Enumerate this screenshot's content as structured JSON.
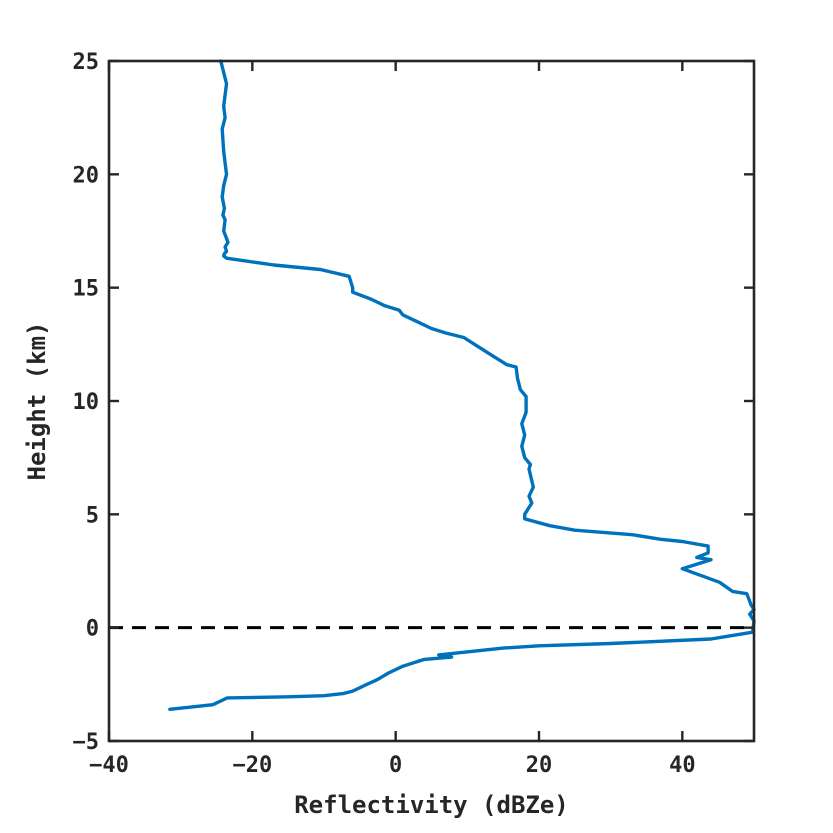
{
  "chart_data": {
    "type": "line",
    "title": "",
    "xlabel": "Reflectivity (dBZe)",
    "ylabel": "Height (km)",
    "xlim": [
      -40,
      50
    ],
    "ylim": [
      -5,
      25
    ],
    "xticks": [
      -40,
      -20,
      0,
      20,
      40
    ],
    "yticks": [
      -5,
      0,
      5,
      10,
      15,
      20,
      25
    ],
    "xtick_labels": [
      "−40",
      "−20",
      "0",
      "20",
      "40"
    ],
    "ytick_labels": [
      "−5",
      "0",
      "5",
      "10",
      "15",
      "20",
      "25"
    ],
    "grid": false,
    "box": true,
    "line_color": "#0072BD",
    "reference_line": {
      "y": 0,
      "style": "dashed",
      "color": "#000000"
    },
    "series": [
      {
        "x": [
          -24.4,
          -23.6,
          -24.0,
          -23.8,
          -24.2,
          -24.0,
          -23.6,
          -24.0,
          -24.2,
          -23.9,
          -24.1,
          -23.8,
          -24.0,
          -23.4,
          -23.8,
          -23.6,
          -23.9,
          -24.0,
          -23.6,
          -17.0,
          -10.5,
          -6.5,
          -6.0,
          -6.0,
          -3.5,
          -1.5,
          0.5,
          1.0,
          3.0,
          5.0,
          7.0,
          9.5,
          11.0,
          13.5,
          15.5,
          16.8,
          17.0,
          17.4,
          18.2,
          18.2,
          17.6,
          18.0,
          17.6,
          18.0,
          18.8,
          18.6,
          19.2,
          18.6,
          19.0,
          18.0,
          18.0,
          21.5,
          25.0,
          33.0,
          37.0,
          40.0,
          43.6,
          43.6,
          42.0,
          44.0,
          40.0,
          45.2,
          47.0,
          49.0,
          49.6,
          50.0,
          49.4,
          50.0,
          49.8,
          44.0,
          30.0,
          20.0,
          15.0,
          6.0,
          7.8,
          4.0,
          1.0,
          -1.0,
          -2.6,
          -4.0,
          -6.0,
          -7.2,
          -10.0,
          -15.0,
          -23.5,
          -25.5,
          -31.5
        ],
        "y": [
          25.0,
          24.0,
          23.0,
          22.5,
          22.0,
          21.0,
          20.0,
          19.5,
          19.0,
          18.5,
          18.2,
          18.0,
          17.5,
          17.0,
          16.8,
          16.6,
          16.5,
          16.4,
          16.3,
          16.0,
          15.8,
          15.5,
          15.0,
          14.8,
          14.5,
          14.2,
          14.0,
          13.8,
          13.5,
          13.2,
          13.0,
          12.8,
          12.5,
          12.0,
          11.6,
          11.5,
          11.0,
          10.5,
          10.2,
          9.5,
          9.0,
          8.5,
          8.0,
          7.5,
          7.2,
          7.0,
          6.2,
          5.8,
          5.5,
          5.0,
          4.8,
          4.5,
          4.3,
          4.1,
          3.9,
          3.8,
          3.6,
          3.3,
          3.1,
          3.0,
          2.6,
          2.0,
          1.6,
          1.5,
          1.0,
          0.8,
          0.6,
          0.3,
          -0.2,
          -0.5,
          -0.7,
          -0.8,
          -0.9,
          -1.2,
          -1.3,
          -1.4,
          -1.7,
          -2.0,
          -2.3,
          -2.5,
          -2.8,
          -2.9,
          -3.0,
          -3.05,
          -3.1,
          -3.4,
          -3.6
        ]
      }
    ]
  }
}
